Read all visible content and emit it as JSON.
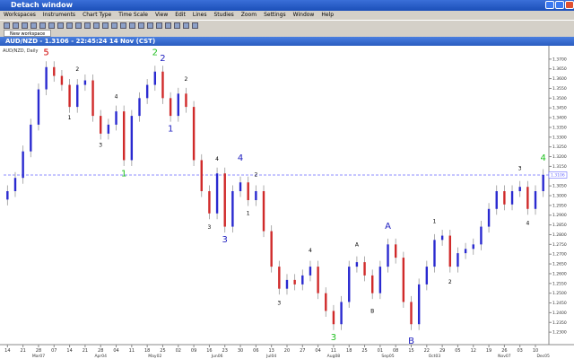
{
  "window": {
    "title": "Detach window"
  },
  "menu": [
    "Workspaces",
    "Instruments",
    "Chart Type",
    "Time Scale",
    "View",
    "Edit",
    "Lines",
    "Studies",
    "Zoom",
    "Settings",
    "Window",
    "Help"
  ],
  "tab": "New workspace",
  "chart_data": {
    "type": "candlestick",
    "title": "AUD/NZD - 1.3106 - 22:45:24  14 Nov (CST)",
    "subtitle": "AUD/NZD, Daily",
    "categories": [
      "14",
      null,
      "21",
      null,
      "28",
      null,
      "07",
      null,
      "14",
      null,
      "21",
      null,
      "28",
      null,
      "04",
      null,
      "11",
      null,
      "18",
      null,
      "25",
      null,
      "02",
      null,
      "09",
      null,
      "16",
      null,
      "23",
      null,
      "30",
      null,
      "06",
      null,
      "13",
      null,
      "20",
      null,
      "27",
      null,
      "04",
      null,
      "11",
      null,
      "18",
      null,
      "25",
      null,
      "01",
      null,
      "08",
      null,
      "15",
      null,
      "22",
      null,
      "29",
      null,
      "05",
      null,
      "12",
      null,
      "19",
      null,
      "26",
      null,
      "03",
      null,
      "10",
      null
    ],
    "month_labels": [
      null,
      null,
      null,
      null,
      "Mar07",
      null,
      null,
      null,
      null,
      null,
      null,
      null,
      "Apr04",
      null,
      null,
      null,
      null,
      null,
      null,
      "May02",
      null,
      null,
      null,
      null,
      null,
      null,
      null,
      "Jun06",
      null,
      null,
      null,
      null,
      null,
      null,
      "Jul04",
      null,
      null,
      null,
      null,
      null,
      null,
      null,
      "Aug08",
      null,
      null,
      null,
      null,
      null,
      null,
      "Sep05",
      null,
      null,
      null,
      null,
      null,
      "Oct03",
      null,
      null,
      null,
      null,
      null,
      null,
      null,
      null,
      "Nov07",
      null,
      null,
      null,
      null,
      "Dec05"
    ],
    "open": [
      1.298,
      1.3023,
      1.3091,
      1.3227,
      1.3364,
      1.3545,
      1.3659,
      1.3614,
      1.3568,
      1.3455,
      1.3568,
      1.3591,
      1.3409,
      1.3318,
      1.3364,
      1.3432,
      1.3182,
      1.3409,
      1.35,
      1.3568,
      1.3636,
      1.35,
      1.3409,
      1.3523,
      1.3455,
      1.3182,
      1.3023,
      1.2909,
      1.3114,
      1.2841,
      1.3023,
      1.3068,
      1.2977,
      1.3023,
      1.2818,
      1.2636,
      1.2523,
      1.2568,
      1.2545,
      1.2591,
      1.2636,
      1.25,
      1.2409,
      1.2341,
      1.2455,
      1.2636,
      1.2659,
      1.2591,
      1.25,
      1.2636,
      1.275,
      1.2682,
      1.2455,
      1.2341,
      1.2545,
      1.2636,
      1.2773,
      1.2795,
      1.2636,
      1.2705,
      1.2727,
      1.275,
      1.2841,
      1.2932,
      1.3023,
      1.2955,
      1.3023,
      1.3045,
      1.2932,
      1.3023
    ],
    "high": [
      1.3053,
      1.3121,
      1.3257,
      1.3394,
      1.3575,
      1.3689,
      1.3689,
      1.3644,
      1.3598,
      1.3598,
      1.3621,
      1.3621,
      1.3439,
      1.3394,
      1.3462,
      1.3462,
      1.3439,
      1.353,
      1.3598,
      1.3666,
      1.3666,
      1.353,
      1.3553,
      1.3553,
      1.3485,
      1.3212,
      1.3053,
      1.3144,
      1.3144,
      1.3053,
      1.3098,
      1.3098,
      1.3053,
      1.3053,
      1.2848,
      1.2666,
      1.2598,
      1.2598,
      1.2621,
      1.2666,
      1.2666,
      1.253,
      1.2439,
      1.2485,
      1.2666,
      1.2689,
      1.2689,
      1.2621,
      1.2666,
      1.278,
      1.278,
      1.2712,
      1.2485,
      1.2575,
      1.2666,
      1.2803,
      1.2825,
      1.2825,
      1.2735,
      1.2757,
      1.278,
      1.2871,
      1.2962,
      1.3053,
      1.3053,
      1.3053,
      1.3075,
      1.3075,
      1.3053,
      1.3136
    ],
    "low": [
      1.295,
      1.2993,
      1.3061,
      1.3197,
      1.3334,
      1.3515,
      1.3584,
      1.3538,
      1.3425,
      1.3425,
      1.3538,
      1.3379,
      1.3288,
      1.3288,
      1.3334,
      1.3152,
      1.3152,
      1.3379,
      1.347,
      1.3538,
      1.347,
      1.3379,
      1.3379,
      1.3425,
      1.3152,
      1.2993,
      1.2879,
      1.2879,
      1.2811,
      1.2811,
      1.2993,
      1.2947,
      1.2947,
      1.2788,
      1.2606,
      1.2493,
      1.2493,
      1.2515,
      1.2515,
      1.2561,
      1.247,
      1.2379,
      1.2311,
      1.2311,
      1.2425,
      1.2606,
      1.2561,
      1.247,
      1.247,
      1.2606,
      1.2652,
      1.2425,
      1.2311,
      1.2311,
      1.2515,
      1.2606,
      1.2743,
      1.2606,
      1.2606,
      1.2675,
      1.2697,
      1.272,
      1.2811,
      1.2902,
      1.2925,
      1.2925,
      1.2993,
      1.2902,
      1.2902,
      1.2993
    ],
    "close": [
      1.3023,
      1.3091,
      1.3227,
      1.3364,
      1.3545,
      1.3659,
      1.3614,
      1.3568,
      1.3455,
      1.3568,
      1.3591,
      1.3409,
      1.3318,
      1.3364,
      1.3432,
      1.3182,
      1.3409,
      1.35,
      1.3568,
      1.3636,
      1.35,
      1.3409,
      1.3523,
      1.3455,
      1.3182,
      1.3023,
      1.2909,
      1.3114,
      1.2841,
      1.3023,
      1.3068,
      1.2977,
      1.3023,
      1.2818,
      1.2636,
      1.2523,
      1.2568,
      1.2545,
      1.2591,
      1.2636,
      1.25,
      1.2409,
      1.2341,
      1.2455,
      1.2636,
      1.2659,
      1.2591,
      1.25,
      1.2636,
      1.275,
      1.2682,
      1.2455,
      1.2341,
      1.2545,
      1.2636,
      1.2773,
      1.2795,
      1.2636,
      1.2705,
      1.2727,
      1.275,
      1.2841,
      1.2932,
      1.3023,
      1.2955,
      1.3023,
      1.3045,
      1.2932,
      1.3023,
      1.3106
    ],
    "up_color": "#2a2ad0",
    "down_color": "#d02a2a",
    "ylim": [
      1.225,
      1.375
    ],
    "yticks": [
      {
        "value": 1.23,
        "label": "1.2300"
      },
      {
        "value": 1.235,
        "label": "1.2350"
      },
      {
        "value": 1.24,
        "label": "1.2400"
      },
      {
        "value": 1.245,
        "label": "1.2450"
      },
      {
        "value": 1.25,
        "label": "1.2500"
      },
      {
        "value": 1.255,
        "label": "1.2550"
      },
      {
        "value": 1.26,
        "label": "1.2600"
      },
      {
        "value": 1.265,
        "label": "1.2650"
      },
      {
        "value": 1.27,
        "label": "1.2700"
      },
      {
        "value": 1.275,
        "label": "1.2750"
      },
      {
        "value": 1.28,
        "label": "1.2800"
      },
      {
        "value": 1.285,
        "label": "1.2850"
      },
      {
        "value": 1.29,
        "label": "1.2900"
      },
      {
        "value": 1.295,
        "label": "1.2950"
      },
      {
        "value": 1.3,
        "label": "1.3000"
      },
      {
        "value": 1.305,
        "label": "1.3050"
      },
      {
        "value": 1.31,
        "label": "1.3100"
      },
      {
        "value": 1.315,
        "label": "1.3150"
      },
      {
        "value": 1.32,
        "label": "1.3200"
      },
      {
        "value": 1.325,
        "label": "1.3250"
      },
      {
        "value": 1.33,
        "label": "1.3300"
      },
      {
        "value": 1.335,
        "label": "1.3350"
      },
      {
        "value": 1.34,
        "label": "1.3400"
      },
      {
        "value": 1.345,
        "label": "1.3450"
      },
      {
        "value": 1.35,
        "label": "1.3500"
      },
      {
        "value": 1.355,
        "label": "1.3550"
      },
      {
        "value": 1.36,
        "label": "1.3600"
      },
      {
        "value": 1.365,
        "label": "1.3650"
      },
      {
        "value": 1.37,
        "label": "1.3700"
      }
    ],
    "price_line": {
      "value": 1.3106,
      "label": "1.3106",
      "color": "#6a6aff"
    },
    "annotations": [
      {
        "text": "5",
        "color": "#d00000",
        "bar": 5,
        "price": 1.372
      },
      {
        "text": "2",
        "color": "#000000",
        "bar": 9,
        "price": 1.364
      },
      {
        "text": "1",
        "color": "#000000",
        "bar": 8,
        "price": 1.339
      },
      {
        "text": "3",
        "color": "#000000",
        "bar": 12,
        "price": 1.325
      },
      {
        "text": "4",
        "color": "#000000",
        "bar": 14,
        "price": 1.35
      },
      {
        "text": "1",
        "color": "#20c020",
        "bar": 15,
        "price": 1.31
      },
      {
        "text": "2",
        "color": "#20c020",
        "bar": 19,
        "price": 1.372
      },
      {
        "text": "2",
        "color": "#2020c0",
        "bar": 20,
        "price": 1.369
      },
      {
        "text": "1",
        "color": "#2020c0",
        "bar": 21,
        "price": 1.333
      },
      {
        "text": "2",
        "color": "#000000",
        "bar": 23,
        "price": 1.359
      },
      {
        "text": "3",
        "color": "#000000",
        "bar": 26,
        "price": 1.283
      },
      {
        "text": "4",
        "color": "#000000",
        "bar": 27,
        "price": 1.318
      },
      {
        "text": "3",
        "color": "#2020c0",
        "bar": 28,
        "price": 1.276
      },
      {
        "text": "4",
        "color": "#2020c0",
        "bar": 30,
        "price": 1.318
      },
      {
        "text": "1",
        "color": "#000000",
        "bar": 31,
        "price": 1.29
      },
      {
        "text": "2",
        "color": "#000000",
        "bar": 32,
        "price": 1.31
      },
      {
        "text": "3",
        "color": "#000000",
        "bar": 35,
        "price": 1.244
      },
      {
        "text": "4",
        "color": "#000000",
        "bar": 39,
        "price": 1.271
      },
      {
        "text": "3",
        "color": "#20c020",
        "bar": 42,
        "price": 1.226
      },
      {
        "text": "A",
        "color": "#000000",
        "bar": 45,
        "price": 1.274
      },
      {
        "text": "B",
        "color": "#000000",
        "bar": 47,
        "price": 1.24
      },
      {
        "text": "A",
        "color": "#2020c0",
        "bar": 49,
        "price": 1.283
      },
      {
        "text": "B",
        "color": "#2020c0",
        "bar": 52,
        "price": 1.224
      },
      {
        "text": "1",
        "color": "#000000",
        "bar": 55,
        "price": 1.286
      },
      {
        "text": "2",
        "color": "#000000",
        "bar": 57,
        "price": 1.255
      },
      {
        "text": "3",
        "color": "#000000",
        "bar": 66,
        "price": 1.313
      },
      {
        "text": "4",
        "color": "#000000",
        "bar": 67,
        "price": 1.285
      },
      {
        "text": "4",
        "color": "#20c020",
        "bar": 69,
        "price": 1.318
      }
    ]
  }
}
